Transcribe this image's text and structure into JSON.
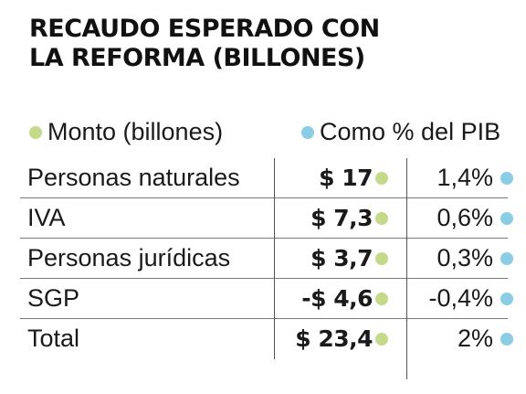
{
  "title": {
    "line1": "RECAUDO ESPERADO CON",
    "line2": "LA REFORMA (BILLONES)"
  },
  "legend": {
    "amount_label": "Monto (billones)",
    "pib_label": "Como % del PIB"
  },
  "colors": {
    "amount_dot": "#c5d98a",
    "pib_dot": "#8ccde6",
    "divider": "#7a7a7a"
  },
  "rows": [
    {
      "label": "Personas naturales",
      "amount": "$ 17",
      "pct": "1,4%"
    },
    {
      "label": "IVA",
      "amount": "$ 7,3",
      "pct": "0,6%"
    },
    {
      "label": "Personas jurídicas",
      "amount": "$ 3,7",
      "pct": "0,3%"
    },
    {
      "label": "SGP",
      "amount": "-$ 4,6",
      "pct": "-0,4%"
    },
    {
      "label": "Total",
      "amount": "$ 23,4",
      "pct": "2%"
    }
  ],
  "chart_data": {
    "type": "table",
    "title": "RECAUDO ESPERADO CON LA REFORMA (BILLONES)",
    "columns": [
      "",
      "Monto (billones)",
      "Como % del PIB"
    ],
    "categories": [
      "Personas naturales",
      "IVA",
      "Personas jurídicas",
      "SGP",
      "Total"
    ],
    "series": [
      {
        "name": "Monto (billones)",
        "values": [
          17,
          7.3,
          3.7,
          -4.6,
          23.4
        ]
      },
      {
        "name": "Como % del PIB",
        "values": [
          1.4,
          0.6,
          0.3,
          -0.4,
          2
        ]
      }
    ],
    "legend_placement": "top"
  }
}
